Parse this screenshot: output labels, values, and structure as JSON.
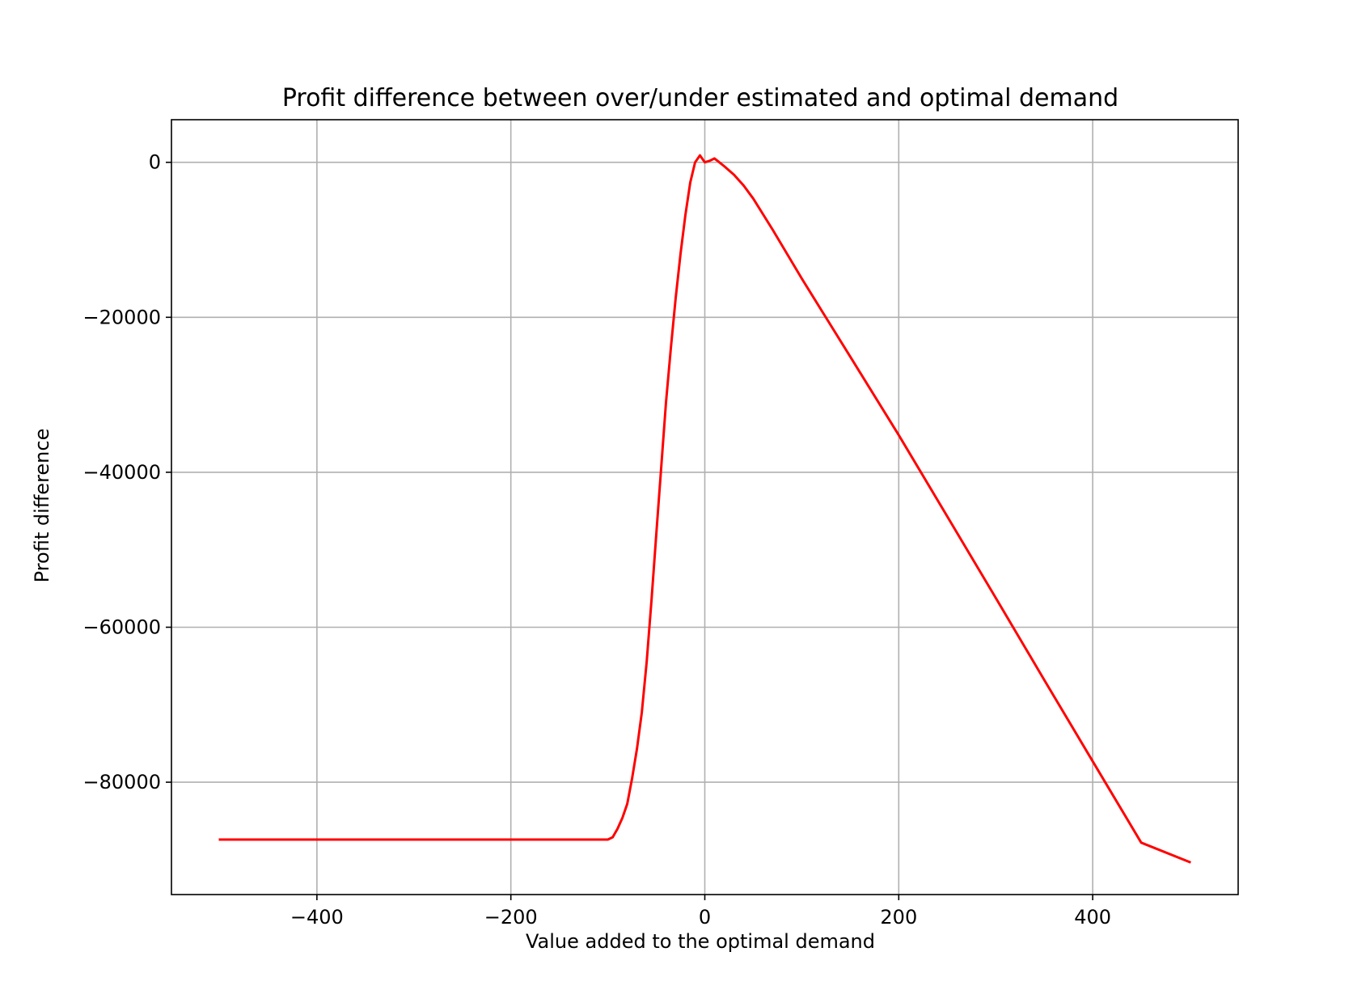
{
  "chart_data": {
    "type": "line",
    "title": "Profit difference between over/under estimated and optimal demand",
    "xlabel": "Value added to the optimal demand",
    "ylabel": "Profit difference",
    "xlim": [
      -550,
      550
    ],
    "ylim": [
      -94500,
      5500
    ],
    "xticks": [
      -400,
      -200,
      0,
      200,
      400
    ],
    "xtick_labels": [
      "−400",
      "−200",
      "0",
      "200",
      "400"
    ],
    "yticks": [
      0,
      -20000,
      -40000,
      -60000,
      -80000
    ],
    "ytick_labels": [
      "0",
      "−20000",
      "−40000",
      "−60000",
      "−80000"
    ],
    "grid": true,
    "series": [
      {
        "color": "#ff0000",
        "x": [
          -500,
          -450,
          -400,
          -350,
          -300,
          -250,
          -200,
          -150,
          -100,
          -95,
          -90,
          -85,
          -80,
          -75,
          -70,
          -65,
          -60,
          -55,
          -50,
          -45,
          -40,
          -35,
          -30,
          -25,
          -20,
          -15,
          -10,
          -5,
          0,
          5,
          10,
          20,
          30,
          40,
          50,
          70,
          100,
          150,
          200,
          250,
          300,
          350,
          400,
          450,
          500
        ],
        "y": [
          -87400,
          -87400,
          -87400,
          -87400,
          -87400,
          -87400,
          -87400,
          -87400,
          -87400,
          -87100,
          -86000,
          -84600,
          -82800,
          -79500,
          -75700,
          -71000,
          -64500,
          -56500,
          -48000,
          -39500,
          -31000,
          -24000,
          -17500,
          -11800,
          -6800,
          -2600,
          0,
          900,
          0,
          200,
          500,
          -500,
          -1600,
          -3000,
          -4700,
          -8700,
          -15000,
          -25100,
          -35200,
          -45700,
          -56200,
          -66800,
          -77300,
          -87800,
          -90300
        ]
      }
    ]
  }
}
